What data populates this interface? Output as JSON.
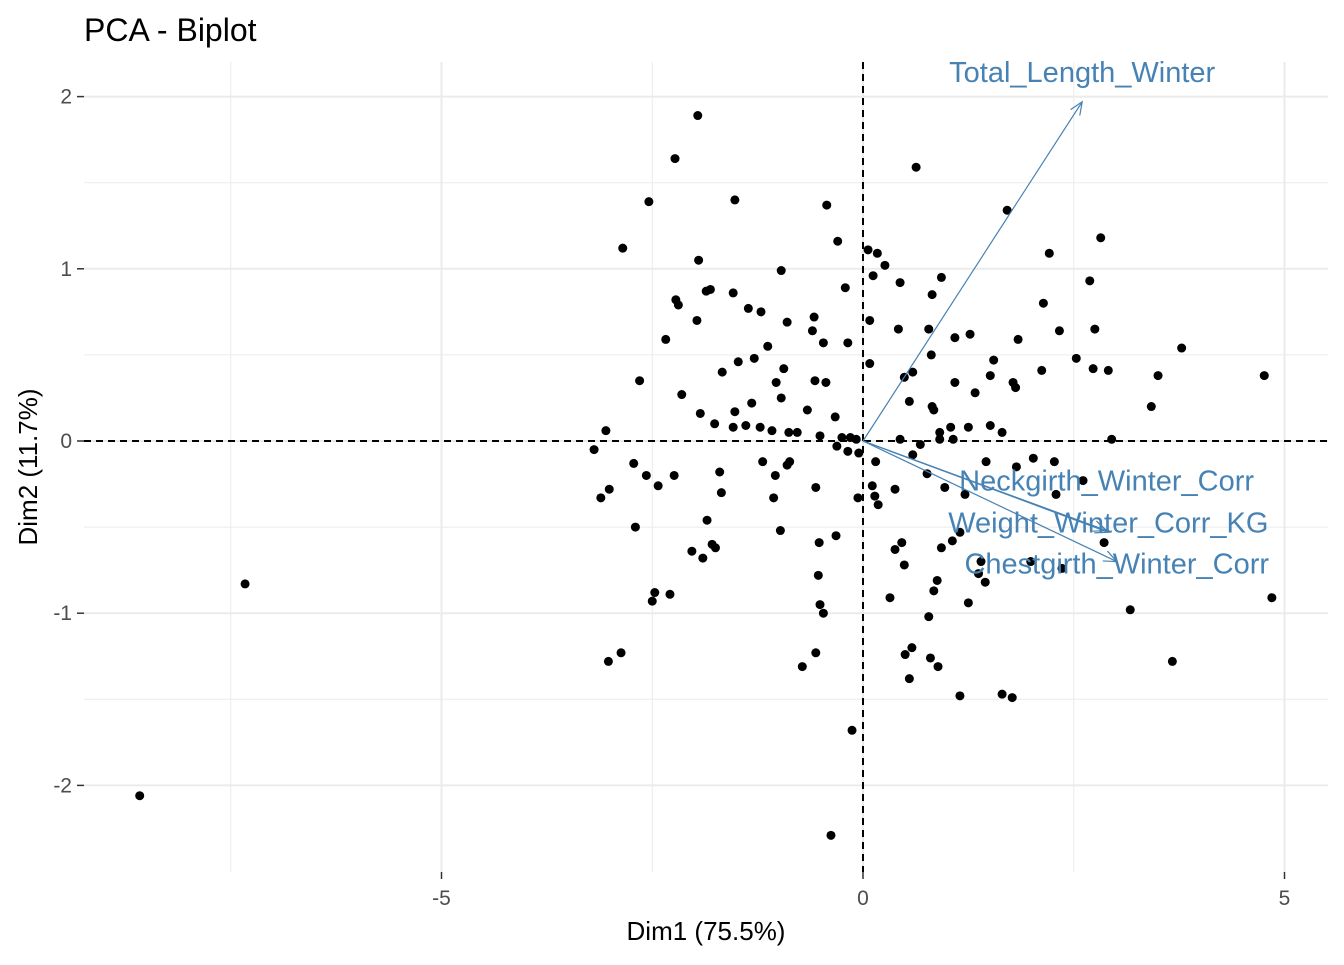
{
  "chart_data": {
    "type": "scatter",
    "title": "PCA - Biplot",
    "xlabel": "Dim1 (75.5%)",
    "ylabel": "Dim2 (11.7%)",
    "xlim": [
      -8.8,
      5.5
    ],
    "ylim": [
      -2.5,
      2.2
    ],
    "x_ticks": [
      -5,
      0,
      5
    ],
    "y_ticks": [
      -2,
      -1,
      0,
      1,
      2
    ],
    "grid": true,
    "colors": {
      "points": "#000000",
      "arrows": "#4682B4",
      "grid": "#EBEBEB"
    },
    "points": [
      [
        -8.58,
        -2.06
      ],
      [
        -7.33,
        -0.83
      ],
      [
        -1.96,
        1.89
      ],
      [
        -2.23,
        1.64
      ],
      [
        -2.54,
        1.39
      ],
      [
        -1.52,
        1.4
      ],
      [
        -2.85,
        1.12
      ],
      [
        -0.43,
        1.37
      ],
      [
        -0.3,
        1.16
      ],
      [
        0.63,
        1.59
      ],
      [
        1.71,
        1.34
      ],
      [
        0.06,
        1.11
      ],
      [
        0.17,
        1.09
      ],
      [
        2.82,
        1.18
      ],
      [
        2.21,
        1.09
      ],
      [
        0.26,
        1.02
      ],
      [
        -0.97,
        0.99
      ],
      [
        -1.95,
        1.05
      ],
      [
        0.12,
        0.96
      ],
      [
        2.69,
        0.93
      ],
      [
        -1.81,
        0.88
      ],
      [
        -0.21,
        0.89
      ],
      [
        -2.22,
        0.82
      ],
      [
        -2.19,
        0.79
      ],
      [
        -1.86,
        0.87
      ],
      [
        -1.54,
        0.86
      ],
      [
        0.44,
        0.92
      ],
      [
        0.93,
        0.95
      ],
      [
        0.82,
        0.85
      ],
      [
        -1.36,
        0.77
      ],
      [
        -1.21,
        0.75
      ],
      [
        2.14,
        0.8
      ],
      [
        -0.9,
        0.69
      ],
      [
        -0.58,
        0.72
      ],
      [
        -0.6,
        0.64
      ],
      [
        0.08,
        0.7
      ],
      [
        0.42,
        0.65
      ],
      [
        0.78,
        0.65
      ],
      [
        2.33,
        0.64
      ],
      [
        2.75,
        0.65
      ],
      [
        -1.97,
        0.7
      ],
      [
        -2.34,
        0.59
      ],
      [
        -1.13,
        0.55
      ],
      [
        -0.47,
        0.57
      ],
      [
        -0.18,
        0.57
      ],
      [
        1.27,
        0.62
      ],
      [
        1.09,
        0.6
      ],
      [
        1.84,
        0.59
      ],
      [
        3.78,
        0.54
      ],
      [
        0.81,
        0.5
      ],
      [
        0.59,
        0.4
      ],
      [
        0.08,
        0.45
      ],
      [
        2.53,
        0.48
      ],
      [
        2.12,
        0.41
      ],
      [
        2.73,
        0.42
      ],
      [
        2.91,
        0.41
      ],
      [
        1.55,
        0.47
      ],
      [
        3.5,
        0.38
      ],
      [
        4.76,
        0.38
      ],
      [
        -1.67,
        0.4
      ],
      [
        -1.48,
        0.46
      ],
      [
        -1.29,
        0.48
      ],
      [
        -1.03,
        0.34
      ],
      [
        -0.94,
        0.42
      ],
      [
        -0.57,
        0.35
      ],
      [
        -0.44,
        0.34
      ],
      [
        -2.65,
        0.35
      ],
      [
        0.49,
        0.37
      ],
      [
        1.51,
        0.38
      ],
      [
        1.09,
        0.34
      ],
      [
        1.33,
        0.28
      ],
      [
        1.78,
        0.34
      ],
      [
        1.81,
        0.31
      ],
      [
        -1.93,
        0.16
      ],
      [
        -2.15,
        0.27
      ],
      [
        -1.52,
        0.17
      ],
      [
        -1.32,
        0.22
      ],
      [
        -0.97,
        0.25
      ],
      [
        -0.66,
        0.18
      ],
      [
        -0.33,
        0.14
      ],
      [
        0.55,
        0.23
      ],
      [
        0.82,
        0.2
      ],
      [
        0.84,
        0.18
      ],
      [
        3.42,
        0.2
      ],
      [
        -3.05,
        0.06
      ],
      [
        -3.19,
        -0.05
      ],
      [
        -1.76,
        0.1
      ],
      [
        -1.54,
        0.08
      ],
      [
        -1.39,
        0.09
      ],
      [
        -1.22,
        0.08
      ],
      [
        -1.08,
        0.06
      ],
      [
        -0.88,
        0.05
      ],
      [
        -0.78,
        0.05
      ],
      [
        -0.51,
        0.03
      ],
      [
        -0.25,
        0.02
      ],
      [
        -0.15,
        0.02
      ],
      [
        -0.08,
        0.01
      ],
      [
        0.44,
        0.01
      ],
      [
        0.91,
        0.05
      ],
      [
        1.04,
        0.08
      ],
      [
        1.25,
        0.08
      ],
      [
        1.51,
        0.09
      ],
      [
        1.65,
        0.05
      ],
      [
        2.95,
        0.01
      ],
      [
        0.68,
        -0.02
      ],
      [
        0.91,
        0.01
      ],
      [
        1.07,
        0.01
      ],
      [
        -0.31,
        -0.03
      ],
      [
        -0.05,
        -0.07
      ],
      [
        0.15,
        -0.12
      ],
      [
        -2.72,
        -0.13
      ],
      [
        -2.57,
        -0.2
      ],
      [
        -2.24,
        -0.2
      ],
      [
        -2.43,
        -0.26
      ],
      [
        -3.11,
        -0.33
      ],
      [
        -3.01,
        -0.28
      ],
      [
        -1.7,
        -0.18
      ],
      [
        -1.19,
        -0.12
      ],
      [
        -1.04,
        -0.2
      ],
      [
        -0.87,
        -0.12
      ],
      [
        -0.9,
        -0.14
      ],
      [
        -0.56,
        -0.27
      ],
      [
        -0.18,
        -0.06
      ],
      [
        -0.06,
        -0.33
      ],
      [
        0.11,
        -0.26
      ],
      [
        0.14,
        -0.32
      ],
      [
        0.18,
        -0.37
      ],
      [
        0.38,
        -0.28
      ],
      [
        0.59,
        -0.08
      ],
      [
        0.76,
        -0.19
      ],
      [
        0.97,
        -0.27
      ],
      [
        1.21,
        -0.31
      ],
      [
        1.46,
        -0.12
      ],
      [
        1.82,
        -0.15
      ],
      [
        2.02,
        -0.1
      ],
      [
        2.27,
        -0.12
      ],
      [
        2.29,
        -0.31
      ],
      [
        2.61,
        -0.23
      ],
      [
        -1.68,
        -0.3
      ],
      [
        -1.06,
        -0.33
      ],
      [
        -2.7,
        -0.5
      ],
      [
        -1.85,
        -0.46
      ],
      [
        -0.98,
        -0.52
      ],
      [
        -1.79,
        -0.6
      ],
      [
        -1.75,
        -0.62
      ],
      [
        -2.03,
        -0.64
      ],
      [
        -1.9,
        -0.68
      ],
      [
        -0.52,
        -0.59
      ],
      [
        -0.32,
        -0.55
      ],
      [
        0.38,
        -0.63
      ],
      [
        0.46,
        -0.59
      ],
      [
        0.49,
        -0.72
      ],
      [
        0.93,
        -0.62
      ],
      [
        1.06,
        -0.58
      ],
      [
        1.15,
        -0.53
      ],
      [
        1.4,
        -0.7
      ],
      [
        1.37,
        -0.77
      ],
      [
        1.45,
        -0.82
      ],
      [
        1.99,
        -0.7
      ],
      [
        2.36,
        -0.74
      ],
      [
        2.86,
        -0.59
      ],
      [
        0.88,
        -0.81
      ],
      [
        0.84,
        -0.87
      ],
      [
        0.32,
        -0.91
      ],
      [
        -0.53,
        -0.78
      ],
      [
        -0.51,
        -0.95
      ],
      [
        -0.47,
        -1.0
      ],
      [
        0.78,
        -1.02
      ],
      [
        1.25,
        -0.94
      ],
      [
        3.17,
        -0.98
      ],
      [
        4.85,
        -0.91
      ],
      [
        -2.47,
        -0.88
      ],
      [
        -2.5,
        -0.93
      ],
      [
        -2.29,
        -0.89
      ],
      [
        -3.02,
        -1.28
      ],
      [
        -2.87,
        -1.23
      ],
      [
        0.58,
        -1.2
      ],
      [
        0.5,
        -1.24
      ],
      [
        0.8,
        -1.26
      ],
      [
        0.89,
        -1.31
      ],
      [
        0.55,
        -1.38
      ],
      [
        -0.72,
        -1.31
      ],
      [
        -0.56,
        -1.23
      ],
      [
        1.15,
        -1.48
      ],
      [
        1.65,
        -1.47
      ],
      [
        1.77,
        -1.49
      ],
      [
        3.67,
        -1.28
      ],
      [
        -0.13,
        -1.68
      ],
      [
        -0.38,
        -2.29
      ]
    ],
    "variables": [
      {
        "name": "Total_Length_Winter",
        "x": 2.6,
        "y": 1.97
      },
      {
        "name": "Neckgirth_Winter_Corr",
        "x": 2.89,
        "y": -0.52
      },
      {
        "name": "Weight_Winter_Corr_KG",
        "x": 2.91,
        "y": -0.53
      },
      {
        "name": "Chestgirth_Winter_Corr",
        "x": 3.01,
        "y": -0.7
      }
    ]
  }
}
